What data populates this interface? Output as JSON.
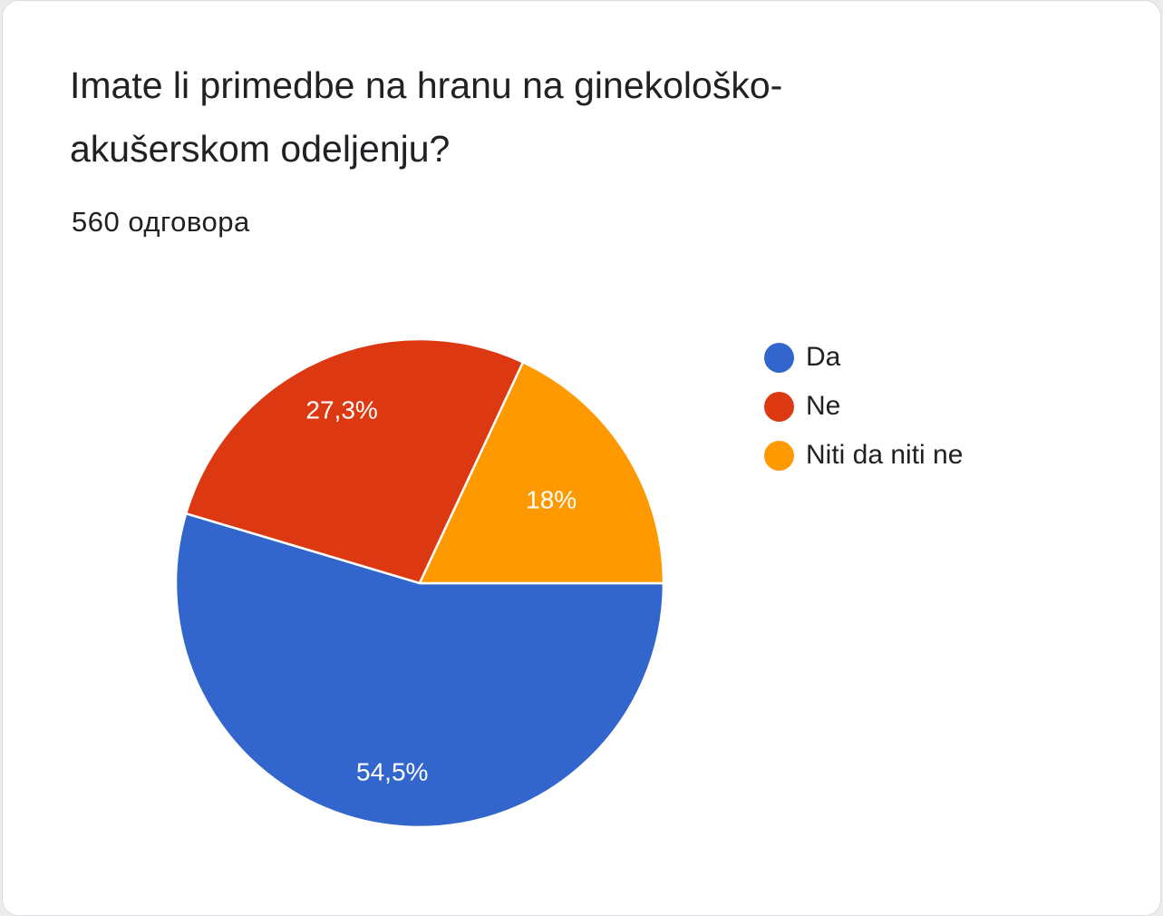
{
  "question": {
    "title": "Imate li primedbe na hranu na ginekološko-akušerskom odeljenju?",
    "response_count": "560 одговора"
  },
  "chart_data": {
    "type": "pie",
    "slices": [
      {
        "name": "Da",
        "value": 54.5,
        "label": "54,5%",
        "color": "#3366cc"
      },
      {
        "name": "Ne",
        "value": 27.3,
        "label": "27,3%",
        "color": "#dc3912"
      },
      {
        "name": "Niti da niti ne",
        "value": 18.0,
        "label": "18%",
        "color": "#ff9900"
      }
    ],
    "start_angle": "3 o'clock",
    "direction": "clockwise",
    "legend_position": "right"
  }
}
